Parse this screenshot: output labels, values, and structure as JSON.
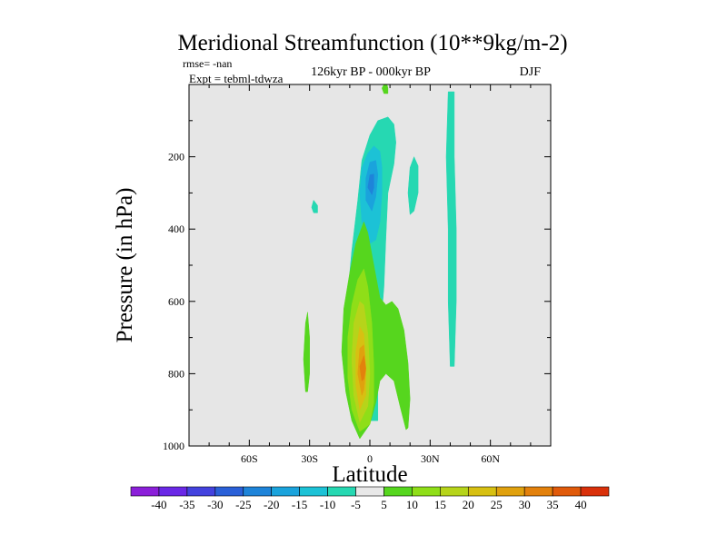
{
  "chart_data": {
    "type": "contour",
    "title": "Meridional Streamfunction (10**9kg/m-2)",
    "left_annotations": [
      "rmse= -nan",
      "Expt = tebml-tdwza"
    ],
    "center_annotation": "126kyr BP - 000kyr BP",
    "right_annotation": "DJF",
    "xlabel": "Latitude",
    "ylabel": "Pressure (in hPa)",
    "xlim": [
      -90,
      90
    ],
    "ylim": [
      1000,
      0
    ],
    "x_ticks": [
      {
        "value": -60,
        "label": "60S"
      },
      {
        "value": -30,
        "label": "30S"
      },
      {
        "value": 0,
        "label": "0"
      },
      {
        "value": 30,
        "label": "30N"
      },
      {
        "value": 60,
        "label": "60N"
      }
    ],
    "y_ticks": [
      {
        "value": 200,
        "label": "200"
      },
      {
        "value": 400,
        "label": "400"
      },
      {
        "value": 600,
        "label": "600"
      },
      {
        "value": 800,
        "label": "800"
      },
      {
        "value": 1000,
        "label": "1000"
      }
    ],
    "background_color": "#e6e6e6",
    "colorbar": {
      "labels": [
        "-40",
        "-35",
        "-30",
        "-25",
        "-20",
        "-15",
        "-10",
        "-5",
        "5",
        "10",
        "15",
        "20",
        "25",
        "30",
        "35",
        "40"
      ],
      "colors": [
        "#8b1fd9",
        "#6a28e6",
        "#4342de",
        "#2a60d8",
        "#1e84d9",
        "#1aa3dc",
        "#1cc2d6",
        "#26d8b2",
        "#e8e8e8",
        "#56d61e",
        "#8fde18",
        "#b6d41a",
        "#d7c012",
        "#e0a10e",
        "#e3810c",
        "#e05a0a",
        "#d9300a"
      ]
    },
    "regions": [
      {
        "level": -5,
        "color": "#26d8b2",
        "points": [
          [
            -7,
            930
          ],
          [
            -9,
            820
          ],
          [
            -10,
            700
          ],
          [
            -11,
            580
          ],
          [
            -9,
            460
          ],
          [
            -6,
            320
          ],
          [
            -4,
            210
          ],
          [
            0,
            140
          ],
          [
            4,
            100
          ],
          [
            9,
            90
          ],
          [
            12,
            110
          ],
          [
            13,
            160
          ],
          [
            12,
            220
          ],
          [
            9,
            300
          ],
          [
            8,
            420
          ],
          [
            7,
            560
          ],
          [
            5,
            700
          ],
          [
            4,
            830
          ],
          [
            4,
            930
          ]
        ]
      },
      {
        "level": -10,
        "color": "#1cc2d6",
        "points": [
          [
            -4,
            380
          ],
          [
            -5,
            300
          ],
          [
            -4,
            230
          ],
          [
            -1,
            190
          ],
          [
            2,
            170
          ],
          [
            5,
            185
          ],
          [
            6,
            230
          ],
          [
            6,
            300
          ],
          [
            5,
            380
          ],
          [
            3,
            430
          ],
          [
            0,
            440
          ]
        ]
      },
      {
        "level": -15,
        "color": "#1aa3dc",
        "points": [
          [
            -2,
            320
          ],
          [
            -2,
            260
          ],
          [
            0,
            215
          ],
          [
            3,
            210
          ],
          [
            4,
            250
          ],
          [
            3,
            310
          ],
          [
            1,
            350
          ]
        ]
      },
      {
        "level": -20,
        "color": "#1e84d9",
        "points": [
          [
            -1,
            285
          ],
          [
            0,
            250
          ],
          [
            2,
            248
          ],
          [
            2,
            285
          ],
          [
            1,
            305
          ]
        ]
      },
      {
        "level": -5,
        "color": "#26d8b2",
        "points": [
          [
            20,
            360
          ],
          [
            19,
            300
          ],
          [
            20,
            230
          ],
          [
            22,
            200
          ],
          [
            24,
            225
          ],
          [
            24,
            300
          ],
          [
            22,
            350
          ]
        ]
      },
      {
        "level": -5,
        "color": "#26d8b2",
        "points": [
          [
            40,
            780
          ],
          [
            39,
            600
          ],
          [
            39,
            400
          ],
          [
            38,
            200
          ],
          [
            39,
            20
          ],
          [
            42,
            20
          ],
          [
            42,
            200
          ],
          [
            43,
            400
          ],
          [
            43,
            600
          ],
          [
            42,
            780
          ]
        ]
      },
      {
        "level": -5,
        "color": "#26d8b2",
        "points": [
          [
            -28,
            355
          ],
          [
            -29,
            340
          ],
          [
            -28,
            320
          ],
          [
            -26,
            335
          ],
          [
            -26,
            355
          ]
        ]
      },
      {
        "level": 5,
        "color": "#56d61e",
        "points": [
          [
            -5,
            980
          ],
          [
            -9,
            930
          ],
          [
            -12,
            850
          ],
          [
            -14,
            740
          ],
          [
            -13,
            620
          ],
          [
            -10,
            520
          ],
          [
            -7,
            440
          ],
          [
            -3,
            380
          ],
          [
            -1,
            410
          ],
          [
            2,
            500
          ],
          [
            5,
            590
          ],
          [
            8,
            610
          ],
          [
            11,
            600
          ],
          [
            14,
            620
          ],
          [
            17,
            680
          ],
          [
            19,
            770
          ],
          [
            20,
            870
          ],
          [
            19,
            950
          ],
          [
            18,
            955
          ],
          [
            15,
            890
          ],
          [
            12,
            820
          ],
          [
            8,
            800
          ],
          [
            5,
            820
          ],
          [
            3,
            880
          ],
          [
            0,
            940
          ]
        ]
      },
      {
        "level": 5,
        "color": "#56d61e",
        "points": [
          [
            -32,
            850
          ],
          [
            -33,
            760
          ],
          [
            -32,
            660
          ],
          [
            -31,
            630
          ],
          [
            -30,
            700
          ],
          [
            -30,
            800
          ],
          [
            -31,
            850
          ]
        ]
      },
      {
        "level": 5,
        "color": "#56d61e",
        "points": [
          [
            7,
            25
          ],
          [
            6,
            10
          ],
          [
            8,
            -10
          ],
          [
            9,
            10
          ],
          [
            9,
            25
          ]
        ]
      },
      {
        "level": 10,
        "color": "#8fde18",
        "points": [
          [
            -5,
            960
          ],
          [
            -9,
            900
          ],
          [
            -11,
            810
          ],
          [
            -11,
            700
          ],
          [
            -9,
            610
          ],
          [
            -6,
            540
          ],
          [
            -3,
            510
          ],
          [
            -1,
            560
          ],
          [
            1,
            660
          ],
          [
            2,
            780
          ],
          [
            2,
            880
          ],
          [
            0,
            940
          ]
        ]
      },
      {
        "level": 15,
        "color": "#b6d41a",
        "points": [
          [
            -5,
            935
          ],
          [
            -8,
            860
          ],
          [
            -9,
            760
          ],
          [
            -8,
            660
          ],
          [
            -5,
            600
          ],
          [
            -3,
            610
          ],
          [
            -1,
            690
          ],
          [
            0,
            800
          ],
          [
            -1,
            890
          ]
        ]
      },
      {
        "level": 20,
        "color": "#d7c012",
        "points": [
          [
            -5,
            900
          ],
          [
            -7,
            830
          ],
          [
            -7,
            740
          ],
          [
            -5,
            670
          ],
          [
            -3,
            690
          ],
          [
            -2,
            780
          ],
          [
            -2,
            860
          ]
        ]
      },
      {
        "level": 25,
        "color": "#e0a10e",
        "points": [
          [
            -4,
            860
          ],
          [
            -6,
            800
          ],
          [
            -5,
            730
          ],
          [
            -3,
            720
          ],
          [
            -2,
            790
          ],
          [
            -3,
            845
          ]
        ]
      },
      {
        "level": 30,
        "color": "#e3810c",
        "points": [
          [
            -4,
            820
          ],
          [
            -5,
            780
          ],
          [
            -3,
            750
          ],
          [
            -2,
            785
          ],
          [
            -3,
            815
          ]
        ]
      }
    ]
  }
}
